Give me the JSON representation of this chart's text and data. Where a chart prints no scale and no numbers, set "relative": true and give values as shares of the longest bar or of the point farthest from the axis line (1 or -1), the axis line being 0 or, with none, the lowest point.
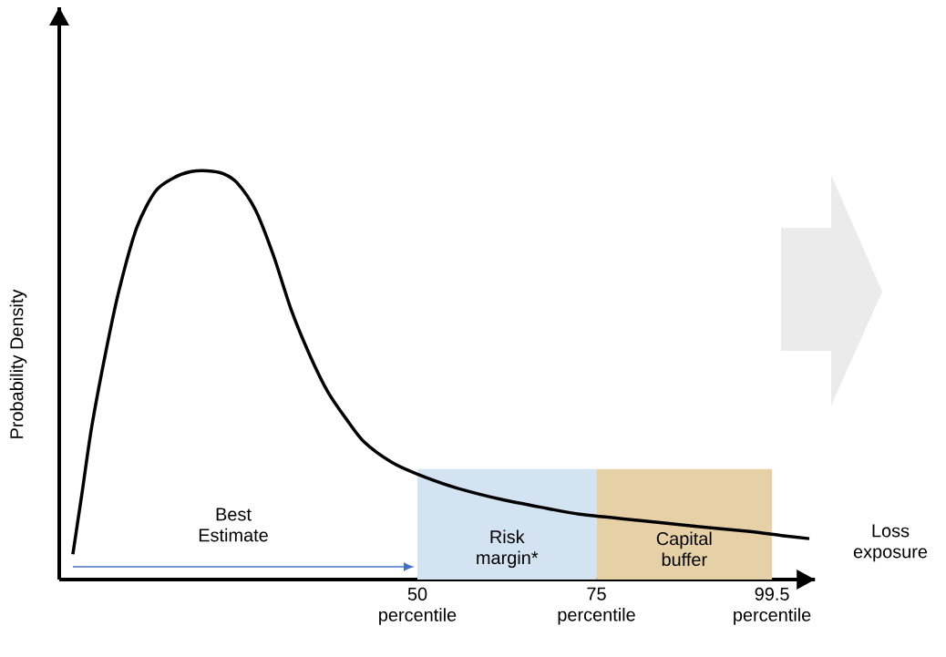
{
  "chart_data": {
    "type": "line",
    "relative": true,
    "color": "#000000",
    "xlabel": "Loss exposure",
    "ylabel": "Probability Density",
    "x": [
      1.9,
      3.2,
      4.5,
      6.4,
      8.3,
      10.8,
      13.4,
      15.9,
      18.4,
      20.7,
      22.9,
      24.8,
      27.4,
      29.9,
      32.4,
      35.0,
      37.5,
      40.1,
      42.6,
      46.4,
      50.0,
      55.3,
      61.7,
      68.1,
      72.6,
      80.8,
      88.4,
      96.1,
      101.1,
      104.7
    ],
    "values": [
      0.062,
      0.214,
      0.37,
      0.548,
      0.704,
      0.86,
      0.949,
      0.982,
      0.998,
      1.0,
      0.993,
      0.971,
      0.904,
      0.793,
      0.659,
      0.548,
      0.459,
      0.392,
      0.336,
      0.287,
      0.258,
      0.225,
      0.196,
      0.174,
      0.16,
      0.145,
      0.131,
      0.118,
      0.107,
      0.1
    ],
    "xlim": [
      0,
      105.5
    ],
    "xticks": [
      {
        "value": 50,
        "label": "50 percentile"
      },
      {
        "value": 75,
        "label": "75 percentile"
      },
      {
        "value": 99.5,
        "label": "99.5 percentile"
      }
    ],
    "bands": [
      {
        "axis": "x",
        "from": 50,
        "to": 75,
        "label": "Risk margin*",
        "color": "#d3e3f2"
      },
      {
        "axis": "x",
        "from": 75,
        "to": 99.5,
        "label": "Capital buffer",
        "color": "#e6d0a6"
      }
    ],
    "annotations": [
      "Best Estimate"
    ]
  }
}
